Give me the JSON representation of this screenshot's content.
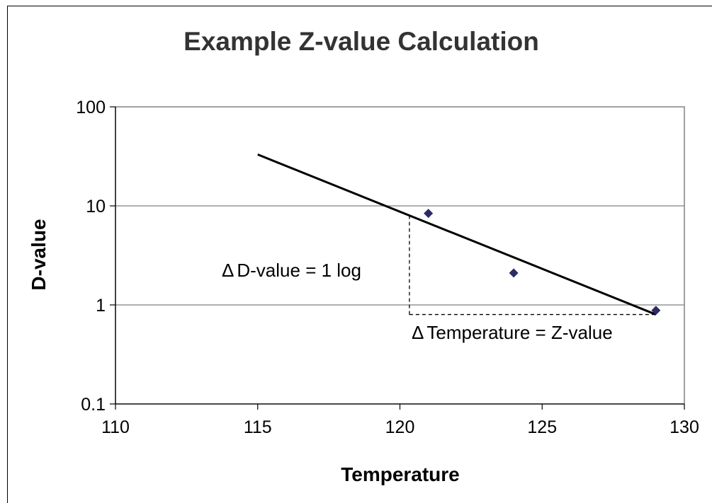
{
  "chart_data": {
    "type": "scatter",
    "title": "Example Z-value Calculation",
    "xlabel": "Temperature",
    "ylabel": "D-value",
    "xlim": [
      110,
      130
    ],
    "ylim": [
      0.1,
      100
    ],
    "yscale": "log",
    "x_ticks": [
      "110",
      "115",
      "120",
      "125",
      "130"
    ],
    "y_ticks": [
      "100",
      "10",
      "1",
      "0.1"
    ],
    "y_grid": true,
    "legend": "none",
    "points": [
      {
        "x": 121,
        "y": 8.4
      },
      {
        "x": 124,
        "y": 2.1
      },
      {
        "x": 129,
        "y": 0.88
      }
    ],
    "trendline": {
      "x_start": 115,
      "y_start": 33,
      "x_end": 129,
      "y_end": 0.8
    },
    "annotations": {
      "delta_d": {
        "symbol": "Δ",
        "text": "D-value = 1 log"
      },
      "delta_t": {
        "symbol": "Δ",
        "text": "Temperature = Z-value"
      }
    },
    "colors": {
      "marker": "#2b2b66",
      "line": "#000000"
    }
  }
}
